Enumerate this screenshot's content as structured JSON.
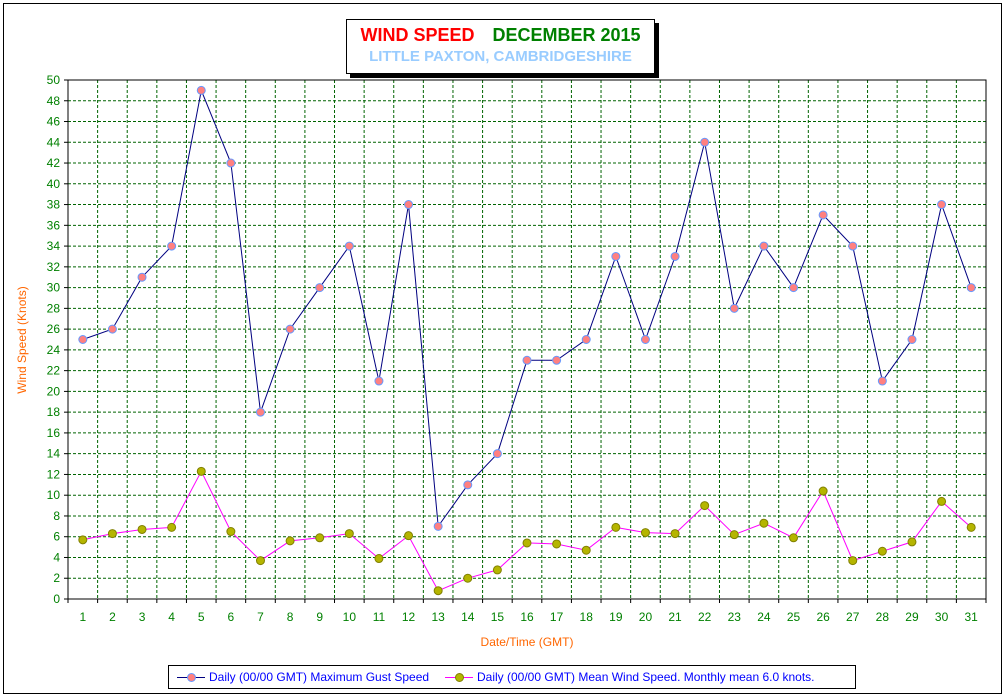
{
  "title": {
    "wind": "WIND SPEED",
    "month": "DECEMBER 2015",
    "location": "LITTLE PAXTON, CAMBRIDGESHIRE"
  },
  "legend": {
    "gust": "Daily (00/00 GMT) Maximum Gust Speed",
    "mean": "Daily (00/00 GMT) Mean Wind Speed. Monthly mean 6.0 knots."
  },
  "colors": {
    "gust_line": "#000080",
    "gust_marker": "#ff8080",
    "mean_line": "#ff00ff",
    "mean_marker": "#b5b500",
    "grid": "#006400",
    "tick_labels": "#008000",
    "axis_labels": "#ff6600"
  },
  "chart_data": {
    "type": "line",
    "xlabel": "Date/Time (GMT)",
    "ylabel": "Wind Speed (Knots)",
    "ylim": [
      0,
      50
    ],
    "yticks": [
      0,
      2,
      4,
      6,
      8,
      10,
      12,
      14,
      16,
      18,
      20,
      22,
      24,
      26,
      28,
      30,
      32,
      34,
      36,
      38,
      40,
      42,
      44,
      46,
      48,
      50
    ],
    "categories": [
      "1",
      "2",
      "3",
      "4",
      "5",
      "6",
      "7",
      "8",
      "9",
      "10",
      "11",
      "12",
      "13",
      "14",
      "15",
      "16",
      "17",
      "18",
      "19",
      "20",
      "21",
      "22",
      "23",
      "24",
      "25",
      "26",
      "27",
      "28",
      "29",
      "30",
      "31"
    ],
    "grid": true,
    "legend_position": "bottom",
    "series": [
      {
        "name": "Daily (00/00 GMT) Maximum Gust Speed",
        "values": [
          25,
          26,
          31,
          34,
          49,
          42,
          18,
          26,
          30,
          34,
          21,
          38,
          7,
          11,
          14,
          23,
          23,
          25,
          33,
          25,
          33,
          44,
          28,
          34,
          30,
          37,
          34,
          21,
          25,
          38,
          30
        ]
      },
      {
        "name": "Daily (00/00 GMT) Mean Wind Speed. Monthly mean 6.0 knots.",
        "values": [
          5.7,
          6.3,
          6.7,
          6.9,
          12.3,
          6.5,
          3.7,
          5.6,
          5.9,
          6.3,
          3.9,
          6.1,
          0.8,
          2.0,
          2.8,
          5.4,
          5.3,
          4.7,
          6.9,
          6.4,
          6.3,
          9.0,
          6.2,
          7.3,
          5.9,
          10.4,
          3.7,
          4.6,
          5.5,
          9.4,
          6.9
        ]
      }
    ]
  }
}
